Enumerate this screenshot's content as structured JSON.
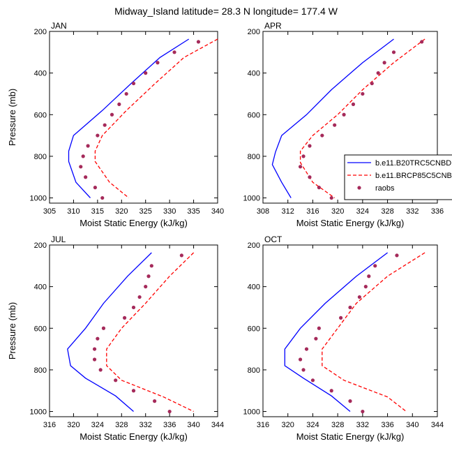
{
  "title": "Midway_Island  latitude= 28.3 N longitude= 177.4 W",
  "legend": {
    "placement": "right of APR panel",
    "entries": [
      {
        "label": "b.e11.B20TRC5CNBDRD",
        "color": "#0000ff",
        "style": "solid"
      },
      {
        "label": "b.e11.BRCP85C5CNBDRD",
        "color": "#ff0000",
        "style": "dashed"
      },
      {
        "label": "raobs",
        "color": "#a52a5a",
        "style": "marker"
      }
    ]
  },
  "chart_data": [
    {
      "type": "line",
      "panel": "JAN",
      "xlabel": "Moist Static Energy (kJ/kg)",
      "ylabel": "Pressure (mb)",
      "xlim": [
        305,
        340
      ],
      "ylim": [
        200,
        1025
      ],
      "y_inverted": true,
      "xticks": [
        305,
        310,
        315,
        320,
        325,
        330,
        335,
        340
      ],
      "yticks": [
        200,
        400,
        600,
        800,
        1000
      ],
      "series": [
        {
          "name": "b.e11.B20TRC5CNBDRD",
          "color": "#0000ff",
          "dash": "",
          "points": [
            [
              334,
              237
            ],
            [
              328,
              325
            ],
            [
              322,
              450
            ],
            [
              316,
              580
            ],
            [
              310,
              700
            ],
            [
              309,
              775
            ],
            [
              309,
              825
            ],
            [
              310.5,
              925
            ],
            [
              313.5,
              1000
            ]
          ]
        },
        {
          "name": "b.e11.BRCP85C5CNBDRD",
          "color": "#ff0000",
          "dash": "5,3",
          "points": [
            [
              340,
              237
            ],
            [
              333,
              325
            ],
            [
              327,
              450
            ],
            [
              321,
              580
            ],
            [
              316,
              700
            ],
            [
              314.5,
              775
            ],
            [
              314.5,
              825
            ],
            [
              317.5,
              925
            ],
            [
              321.5,
              1000
            ]
          ]
        },
        {
          "name": "raobs",
          "color": "#a52a5a",
          "marker": true,
          "points": [
            [
              336,
              250
            ],
            [
              331,
              300
            ],
            [
              327.5,
              350
            ],
            [
              325,
              400
            ],
            [
              322.5,
              450
            ],
            [
              321,
              500
            ],
            [
              319.5,
              550
            ],
            [
              318,
              600
            ],
            [
              316.5,
              650
            ],
            [
              315,
              700
            ],
            [
              313,
              750
            ],
            [
              312,
              800
            ],
            [
              311.5,
              850
            ],
            [
              312.5,
              900
            ],
            [
              314.5,
              950
            ],
            [
              316,
              1000
            ]
          ]
        }
      ]
    },
    {
      "type": "line",
      "panel": "APR",
      "xlabel": "Moist Static Energy (kJ/kg)",
      "ylabel": "",
      "xlim": [
        308,
        336
      ],
      "ylim": [
        200,
        1025
      ],
      "y_inverted": true,
      "xticks": [
        308,
        312,
        316,
        320,
        324,
        328,
        332,
        336
      ],
      "yticks": [
        200,
        400,
        600,
        800,
        1000
      ],
      "series": [
        {
          "name": "b.e11.B20TRC5CNBDRD",
          "color": "#0000ff",
          "dash": "",
          "points": [
            [
              329,
              237
            ],
            [
              324,
              350
            ],
            [
              319,
              480
            ],
            [
              315,
              600
            ],
            [
              311,
              700
            ],
            [
              310,
              780
            ],
            [
              309.5,
              840
            ],
            [
              311,
              925
            ],
            [
              312.5,
              1000
            ]
          ]
        },
        {
          "name": "b.e11.BRCP85C5CNBDRD",
          "color": "#ff0000",
          "dash": "5,3",
          "points": [
            [
              334,
              237
            ],
            [
              329,
              350
            ],
            [
              324,
              480
            ],
            [
              320,
              600
            ],
            [
              316,
              700
            ],
            [
              314,
              775
            ],
            [
              314,
              830
            ],
            [
              316,
              925
            ],
            [
              319.5,
              1000
            ]
          ]
        },
        {
          "name": "raobs",
          "color": "#a52a5a",
          "marker": true,
          "points": [
            [
              333.5,
              250
            ],
            [
              329,
              300
            ],
            [
              327.5,
              350
            ],
            [
              326.5,
              400
            ],
            [
              325.5,
              450
            ],
            [
              324,
              500
            ],
            [
              322.5,
              550
            ],
            [
              321,
              600
            ],
            [
              319.5,
              650
            ],
            [
              317.5,
              700
            ],
            [
              315.5,
              750
            ],
            [
              314.5,
              800
            ],
            [
              314,
              850
            ],
            [
              315.5,
              900
            ],
            [
              317,
              950
            ],
            [
              319,
              1000
            ]
          ]
        }
      ]
    },
    {
      "type": "line",
      "panel": "JUL",
      "xlabel": "Moist Static Energy (kJ/kg)",
      "ylabel": "Pressure (mb)",
      "xlim": [
        316,
        344
      ],
      "ylim": [
        200,
        1025
      ],
      "y_inverted": true,
      "xticks": [
        316,
        320,
        324,
        328,
        332,
        336,
        340,
        344
      ],
      "yticks": [
        200,
        400,
        600,
        800,
        1000
      ],
      "series": [
        {
          "name": "b.e11.B20TRC5CNBDRD",
          "color": "#0000ff",
          "dash": "",
          "points": [
            [
              333,
              237
            ],
            [
              329,
              350
            ],
            [
              325,
              480
            ],
            [
              322,
              600
            ],
            [
              319,
              700
            ],
            [
              319.5,
              780
            ],
            [
              322,
              840
            ],
            [
              327,
              925
            ],
            [
              330,
              1000
            ]
          ]
        },
        {
          "name": "b.e11.BRCP85C5CNBDRD",
          "color": "#ff0000",
          "dash": "5,3",
          "points": [
            [
              340,
              237
            ],
            [
              336,
              350
            ],
            [
              332,
              480
            ],
            [
              328,
              600
            ],
            [
              325.5,
              700
            ],
            [
              325.5,
              780
            ],
            [
              328,
              850
            ],
            [
              335,
              930
            ],
            [
              340,
              1000
            ]
          ]
        },
        {
          "name": "raobs",
          "color": "#a52a5a",
          "marker": true,
          "points": [
            [
              338,
              250
            ],
            [
              333,
              300
            ],
            [
              332.5,
              350
            ],
            [
              332,
              400
            ],
            [
              331,
              450
            ],
            [
              330,
              500
            ],
            [
              328.5,
              550
            ],
            [
              325,
              600
            ],
            [
              324,
              650
            ],
            [
              323.5,
              700
            ],
            [
              323.5,
              750
            ],
            [
              324.5,
              800
            ],
            [
              327,
              850
            ],
            [
              330,
              900
            ],
            [
              333.5,
              950
            ],
            [
              336,
              1000
            ]
          ]
        }
      ]
    },
    {
      "type": "line",
      "panel": "OCT",
      "xlabel": "Moist Static Energy (kJ/kg)",
      "ylabel": "",
      "xlim": [
        316,
        344
      ],
      "ylim": [
        200,
        1025
      ],
      "y_inverted": true,
      "xticks": [
        316,
        320,
        324,
        328,
        332,
        336,
        340,
        344
      ],
      "yticks": [
        200,
        400,
        600,
        800,
        1000
      ],
      "series": [
        {
          "name": "b.e11.B20TRC5CNBDRD",
          "color": "#0000ff",
          "dash": "",
          "points": [
            [
              336,
              237
            ],
            [
              331,
              350
            ],
            [
              326,
              480
            ],
            [
              322,
              600
            ],
            [
              319.5,
              700
            ],
            [
              319.5,
              780
            ],
            [
              322.5,
              840
            ],
            [
              327,
              925
            ],
            [
              330,
              1000
            ]
          ]
        },
        {
          "name": "b.e11.BRCP85C5CNBDRD",
          "color": "#ff0000",
          "dash": "5,3",
          "points": [
            [
              342,
              237
            ],
            [
              336,
              350
            ],
            [
              331,
              480
            ],
            [
              328,
              600
            ],
            [
              325.5,
              700
            ],
            [
              325.5,
              780
            ],
            [
              329,
              850
            ],
            [
              336,
              930
            ],
            [
              339,
              1000
            ]
          ]
        },
        {
          "name": "raobs",
          "color": "#a52a5a",
          "marker": true,
          "points": [
            [
              337.5,
              250
            ],
            [
              334,
              300
            ],
            [
              333,
              350
            ],
            [
              332.5,
              400
            ],
            [
              331.5,
              450
            ],
            [
              330,
              500
            ],
            [
              328.5,
              550
            ],
            [
              325,
              600
            ],
            [
              324.5,
              650
            ],
            [
              323,
              700
            ],
            [
              322,
              750
            ],
            [
              322.5,
              800
            ],
            [
              324,
              850
            ],
            [
              327,
              900
            ],
            [
              330,
              950
            ],
            [
              332,
              1000
            ]
          ]
        }
      ]
    }
  ]
}
